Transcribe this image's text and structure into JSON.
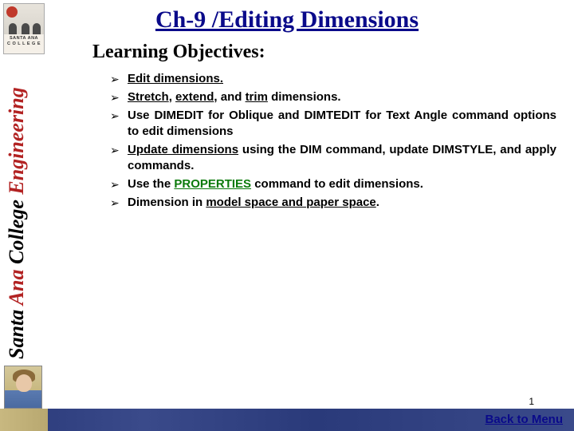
{
  "logo": {
    "line1": "SANTA ANA",
    "line2": "C O L L E G E"
  },
  "vertical_label": {
    "part1": "Santa ",
    "part2_red": "Ana ",
    "part3": "College ",
    "part4_red": "Engineering"
  },
  "title": "Ch-9 /Editing Dimensions",
  "subtitle": "Learning Objectives:",
  "bullet_glyph": "➢",
  "bullets": [
    {
      "html": "<span class='u'>Edit dimensions.</span>"
    },
    {
      "html": "<span class='u'>Stretch</span>, <span class='u'>extend</span>, and <span class='u'>trim</span> dimensions."
    },
    {
      "html": "Use DIMEDIT for Oblique and DIMTEDIT for Text Angle command options to edit dimensions"
    },
    {
      "html": "<span class='u'>Update dimensions</span> using the DIM command, update DIMSTYLE, and apply commands."
    },
    {
      "html": "Use the <span class='u green'>PROPERTIES</span> command to edit dimensions."
    },
    {
      "html": "Dimension in <span class='u'>model space and paper space</span>."
    }
  ],
  "page_number": "1",
  "back_link": "Back to Menu"
}
